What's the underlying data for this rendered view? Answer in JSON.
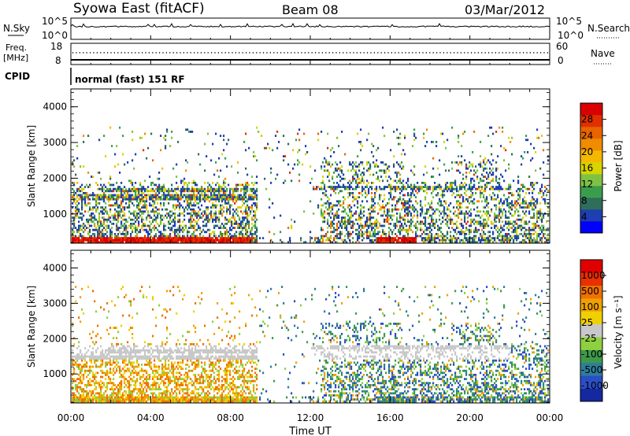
{
  "header": {
    "station": "Syowa East (fitACF)",
    "beam": "Beam 08",
    "date": "03/Mar/2012"
  },
  "top_panels": {
    "nsky_label": "N.Sky",
    "nsky_ticks": [
      "10^5",
      "10^0"
    ],
    "nsearch_label": "N.Search",
    "nsearch_ticks": [
      "10^5",
      "10^0"
    ],
    "freq_label": "Freq.",
    "freq_unit": "[MHz]",
    "freq_ticks": [
      "18",
      "8"
    ],
    "nave_label": "Nave",
    "nave_ticks": [
      "60",
      "0"
    ],
    "cpid_label": "CPID",
    "cpid_text": "normal (fast) 151 RF"
  },
  "chart_data": [
    {
      "type": "heatmap",
      "name": "power",
      "ylabel": "Slant Range [km]",
      "ylim": [
        180,
        4500
      ],
      "yticks": [
        1000,
        2000,
        3000,
        4000
      ],
      "x_ticks": [
        "00:00",
        "04:00",
        "08:00",
        "12:00",
        "16:00",
        "20:00",
        "00:00"
      ],
      "xlim_hours": [
        0,
        24
      ],
      "colorbar": {
        "label": "Power [dB]",
        "ticks": [
          "28",
          "24",
          "20",
          "16",
          "12",
          "8",
          "4"
        ],
        "range": [
          0,
          30
        ],
        "colors": [
          "#0000ff",
          "#1e3fb0",
          "#2e6e5a",
          "#3b9d4c",
          "#7fc243",
          "#d8d400",
          "#f5b800",
          "#f08c00",
          "#e86400",
          "#e03000",
          "#d80000"
        ]
      }
    },
    {
      "type": "heatmap",
      "name": "velocity",
      "ylabel": "Slant Range [km]",
      "ylim": [
        180,
        4500
      ],
      "yticks": [
        1000,
        2000,
        3000,
        4000
      ],
      "x_ticks": [
        "00:00",
        "04:00",
        "08:00",
        "12:00",
        "16:00",
        "20:00",
        "00:00"
      ],
      "xlim_hours": [
        0,
        24
      ],
      "xlabel": "Time UT",
      "colorbar": {
        "label": "Velocity [m s⁻¹]",
        "ticks": [
          "1000",
          "500",
          "100",
          "25",
          "-25",
          "-100",
          "-500",
          "-1000"
        ],
        "range": [
          -1200,
          1200
        ],
        "colors": [
          "#1428a0",
          "#2a4ec8",
          "#2e7d9a",
          "#3d9a4a",
          "#8fd040",
          "#c8c8c8",
          "#f0d000",
          "#f0a000",
          "#f07000",
          "#e83000",
          "#e00000"
        ]
      }
    }
  ]
}
